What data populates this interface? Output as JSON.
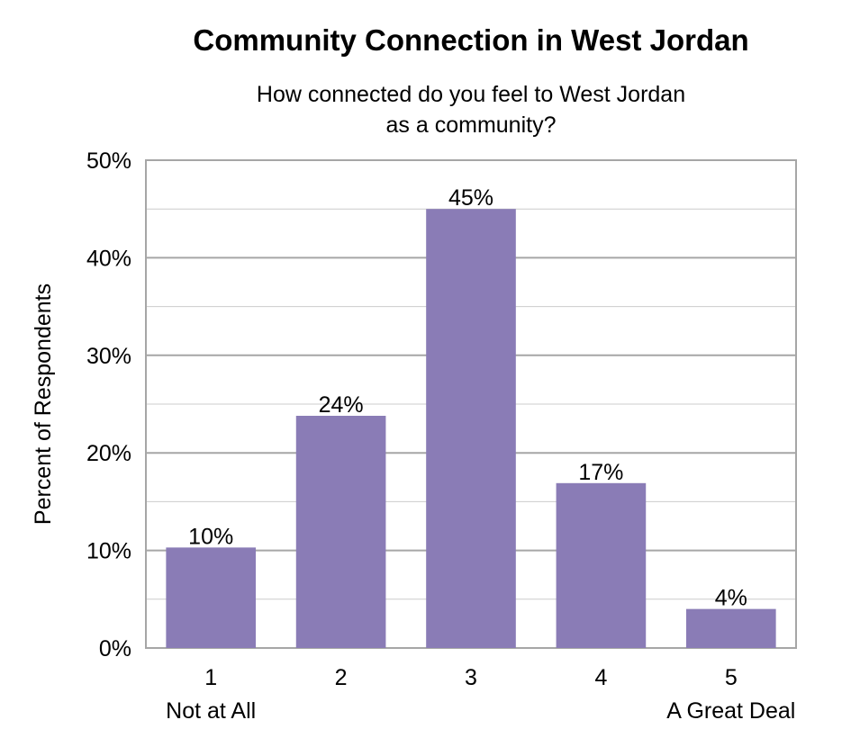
{
  "chart_data": {
    "type": "bar",
    "title": "Community Connection in West Jordan",
    "subtitle": [
      "How connected do you feel to West Jordan",
      "as a community?"
    ],
    "ylabel": "Percent of Respondents",
    "xlabel": "",
    "categories": [
      "1",
      "2",
      "3",
      "4",
      "5"
    ],
    "category_sublabels": [
      "Not at All",
      "",
      "",
      "",
      "A Great Deal"
    ],
    "values": [
      10.3,
      23.8,
      45.0,
      16.9,
      4.0
    ],
    "data_labels": [
      "10%",
      "24%",
      "45%",
      "17%",
      "4%"
    ],
    "ylim": [
      0,
      50
    ],
    "yticks": [
      0,
      10,
      20,
      30,
      40,
      50
    ],
    "ytick_labels": [
      "0%",
      "10%",
      "20%",
      "30%",
      "40%",
      "50%"
    ],
    "grid": true,
    "colors": {
      "bar": "#8a7cb6",
      "grid_major": "#a6a6a6",
      "grid_minor": "#cccccc",
      "frame": "#a6a6a6"
    }
  }
}
